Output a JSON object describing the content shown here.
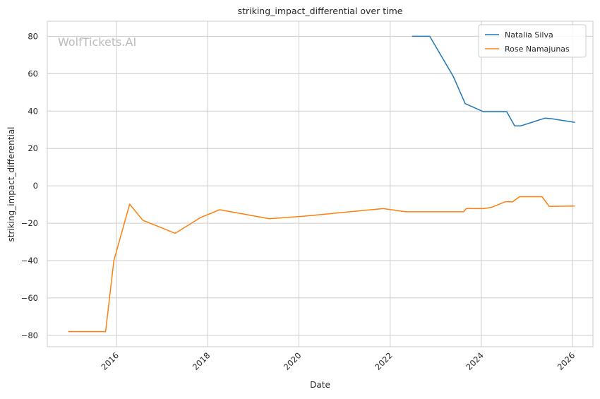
{
  "watermark": "WolfTickets.AI",
  "chart_data": {
    "type": "line",
    "title": "striking_impact_differential over time",
    "xlabel": "Date",
    "ylabel": "striking_impact_differential",
    "xlim": [
      "2014-06-26",
      "2026-06-13"
    ],
    "ylim": [
      -86.1,
      88.1
    ],
    "x_ticks": [
      "2016",
      "2018",
      "2020",
      "2022",
      "2024",
      "2026"
    ],
    "y_ticks": [
      80,
      60,
      40,
      20,
      0,
      -20,
      -40,
      -60,
      -80
    ],
    "y_tick_labels": [
      "80",
      "60",
      "40",
      "20",
      "0",
      "−20",
      "−40",
      "−60",
      "−80"
    ],
    "grid": true,
    "legend_position": "upper right",
    "series": [
      {
        "name": "Natalia Silva",
        "color": "#1f77b4",
        "points": [
          [
            "2022-06-25",
            80.0
          ],
          [
            "2022-11-14",
            80.0
          ],
          [
            "2023-05-21",
            58.6
          ],
          [
            "2023-08-25",
            44.0
          ],
          [
            "2024-01-20",
            39.6
          ],
          [
            "2024-07-23",
            39.6
          ],
          [
            "2024-09-24",
            32.1
          ],
          [
            "2024-11-13",
            32.1
          ],
          [
            "2025-05-24",
            36.2
          ],
          [
            "2025-07-18",
            35.9
          ],
          [
            "2026-01-19",
            34.0
          ]
        ]
      },
      {
        "name": "Rose Namajunas",
        "color": "#ff7f0e",
        "points": [
          [
            "2014-12-11",
            -78.0
          ],
          [
            "2015-10-06",
            -78.0
          ],
          [
            "2015-12-11",
            -40.0
          ],
          [
            "2016-04-16",
            -9.8
          ],
          [
            "2016-07-30",
            -18.4
          ],
          [
            "2017-04-15",
            -25.4
          ],
          [
            "2017-11-04",
            -17.0
          ],
          [
            "2018-04-07",
            -12.8
          ],
          [
            "2019-05-11",
            -17.6
          ],
          [
            "2020-03-07",
            -16.1
          ],
          [
            "2021-04-24",
            -13.4
          ],
          [
            "2021-11-06",
            -12.2
          ],
          [
            "2022-05-07",
            -13.9
          ],
          [
            "2023-08-13",
            -13.9
          ],
          [
            "2023-09-02",
            -12.2
          ],
          [
            "2024-01-20",
            -12.2
          ],
          [
            "2024-03-23",
            -11.5
          ],
          [
            "2024-07-13",
            -8.5
          ],
          [
            "2024-09-07",
            -8.6
          ],
          [
            "2024-11-02",
            -5.8
          ],
          [
            "2025-05-01",
            -5.8
          ],
          [
            "2025-06-28",
            -11.0
          ],
          [
            "2026-01-19",
            -10.8
          ]
        ]
      }
    ]
  }
}
